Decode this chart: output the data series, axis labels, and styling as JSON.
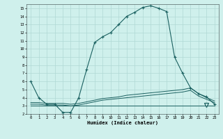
{
  "xlabel": "Humidex (Indice chaleur)",
  "xlim": [
    -0.5,
    23.5
  ],
  "ylim": [
    2,
    15.5
  ],
  "yticks": [
    2,
    3,
    4,
    5,
    6,
    7,
    8,
    9,
    10,
    11,
    12,
    13,
    14,
    15
  ],
  "xticks": [
    0,
    1,
    2,
    3,
    4,
    5,
    6,
    7,
    8,
    9,
    10,
    11,
    12,
    13,
    14,
    15,
    16,
    17,
    18,
    19,
    20,
    21,
    22,
    23
  ],
  "bg_color": "#cff0ec",
  "grid_color": "#b0d8d4",
  "line_color": "#1a6060",
  "series1_x": [
    0,
    1,
    2,
    3,
    4,
    5,
    6,
    7,
    8,
    9,
    10,
    11,
    12,
    13,
    14,
    15,
    16,
    17,
    18,
    19,
    20,
    21,
    22,
    23
  ],
  "series1_y": [
    6.0,
    4.0,
    3.2,
    3.2,
    2.2,
    2.2,
    4.0,
    7.5,
    10.8,
    11.5,
    12.0,
    13.0,
    14.0,
    14.5,
    15.1,
    15.3,
    15.0,
    14.6,
    9.0,
    7.0,
    5.2,
    4.5,
    4.1,
    3.2
  ],
  "series2_x": [
    0,
    1,
    2,
    3,
    4,
    5,
    6,
    7,
    8,
    9,
    10,
    11,
    12,
    13,
    14,
    15,
    16,
    17,
    18,
    19,
    20,
    21,
    22,
    23
  ],
  "series2_y": [
    3.4,
    3.4,
    3.3,
    3.3,
    3.3,
    3.2,
    3.3,
    3.5,
    3.7,
    3.9,
    4.0,
    4.1,
    4.3,
    4.4,
    4.5,
    4.6,
    4.7,
    4.8,
    4.9,
    5.0,
    5.2,
    4.5,
    4.0,
    3.6
  ],
  "series3_x": [
    0,
    1,
    2,
    3,
    4,
    5,
    6,
    7,
    8,
    9,
    10,
    11,
    12,
    13,
    14,
    15,
    16,
    17,
    18,
    19,
    20,
    21,
    22,
    23
  ],
  "series3_y": [
    3.2,
    3.2,
    3.1,
    3.1,
    3.1,
    3.0,
    3.1,
    3.3,
    3.5,
    3.7,
    3.8,
    3.9,
    4.0,
    4.1,
    4.2,
    4.3,
    4.4,
    4.5,
    4.6,
    4.7,
    4.9,
    4.2,
    3.8,
    3.4
  ],
  "series4_x": [
    0,
    23
  ],
  "series4_y": [
    3.0,
    3.0
  ],
  "triangle_x": 22,
  "triangle_y": 3.1
}
